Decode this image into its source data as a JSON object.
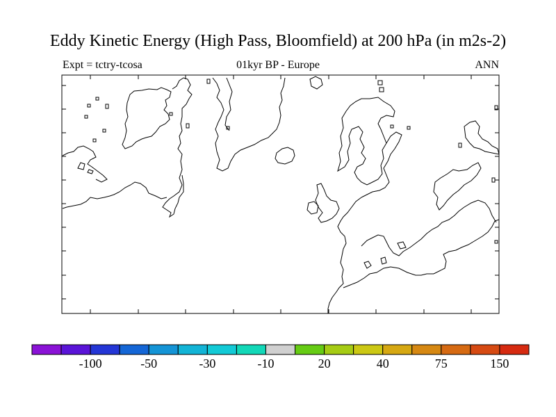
{
  "title": "Eddy Kinetic Energy (High Pass, Bloomfield) at 200 hPa (in m2s-2)",
  "subtitle_left": "Expt = tctry-tcosa",
  "subtitle_center": "01kyr BP - Europe",
  "subtitle_right": "ANN",
  "colorbar": {
    "colors": [
      "#8a12d6",
      "#5a14d8",
      "#2436d6",
      "#1466d6",
      "#1494d6",
      "#12b4d6",
      "#12cad6",
      "#12d8b8",
      "#d0d0d0",
      "#66cc14",
      "#a6cc14",
      "#ccc814",
      "#d6a812",
      "#d68812",
      "#d66a12",
      "#d64a12",
      "#d62a10"
    ],
    "labels": [
      "-100",
      "-50",
      "-30",
      "-10",
      "20",
      "40",
      "75",
      "150"
    ]
  }
}
